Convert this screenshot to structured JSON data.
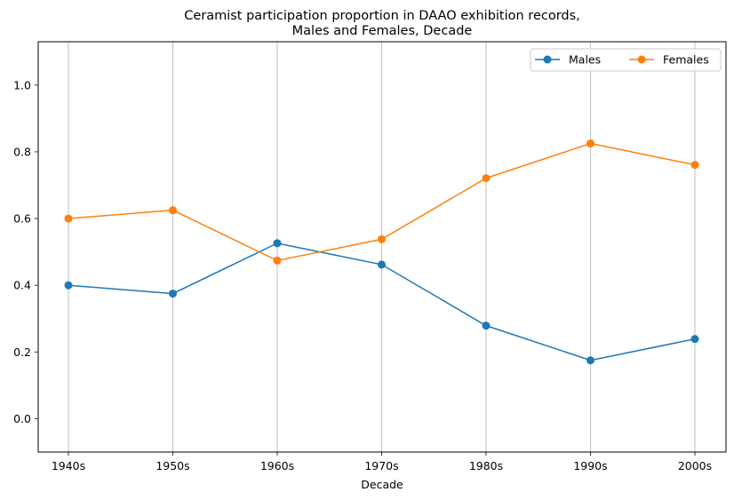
{
  "chart_data": {
    "type": "line",
    "title_lines": [
      "Ceramist participation proportion in DAAO exhibition records,",
      "Males and Females, Decade"
    ],
    "xlabel": "Decade",
    "ylabel": "",
    "categories": [
      "1940s",
      "1950s",
      "1960s",
      "1970s",
      "1980s",
      "1990s",
      "2000s"
    ],
    "series": [
      {
        "name": "Males",
        "color": "#1f77b4",
        "values": [
          0.4,
          0.375,
          0.526,
          0.462,
          0.279,
          0.175,
          0.239
        ]
      },
      {
        "name": "Females",
        "color": "#ff7f0e",
        "values": [
          0.6,
          0.625,
          0.474,
          0.538,
          0.721,
          0.825,
          0.761
        ]
      }
    ],
    "ylim": [
      -0.1,
      1.13
    ],
    "yticks": [
      "0.0",
      "0.2",
      "0.4",
      "0.6",
      "0.8",
      "1.0"
    ],
    "grid": "vertical",
    "legend_position": "top-right"
  }
}
